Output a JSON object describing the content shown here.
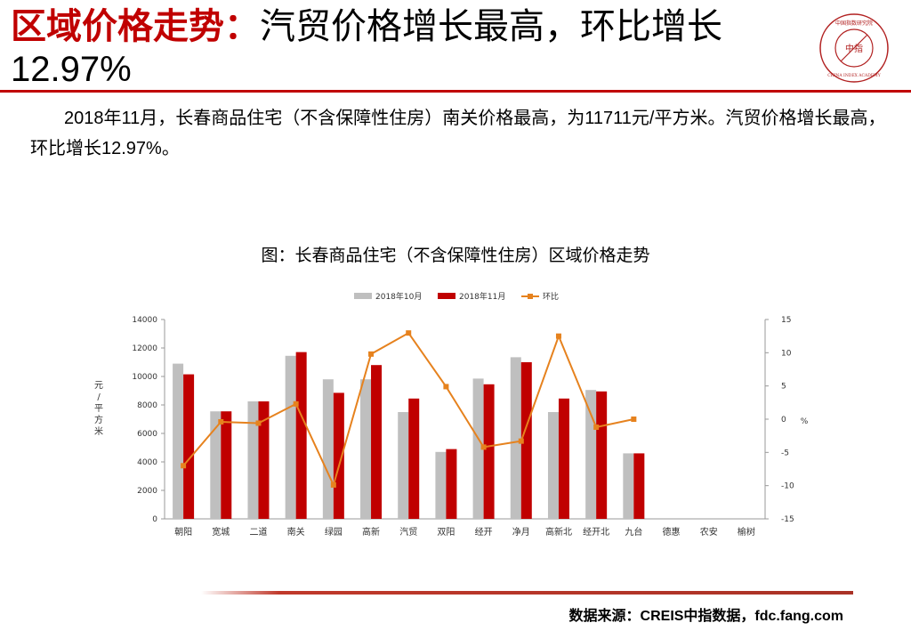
{
  "header": {
    "title_lead": "区域价格走势：",
    "title_rest": "汽贸价格增长最高，环比增长12.97%",
    "seal_center": "中指",
    "seal_top": "中国指数研究院",
    "seal_bottom": "CHINA INDEX ACADEMY"
  },
  "paragraph": "2018年11月，长春商品住宅（不含保障性住房）南关价格最高，为11711元/平方米。汽贸价格增长最高，环比增长12.97%。",
  "chart_title": "图：长春商品住宅（不含保障性住房）区域价格走势",
  "source": "数据来源：CREIS中指数据，fdc.fang.com",
  "colors": {
    "title_red": "#c00000",
    "series_oct": "#bfbfbf",
    "series_nov": "#c00000",
    "series_mom": "#e6821e"
  },
  "chart_data": {
    "type": "bar",
    "categories": [
      "朝阳",
      "宽城",
      "二道",
      "南关",
      "绿园",
      "高新",
      "汽贸",
      "双阳",
      "经开",
      "净月",
      "高新北",
      "经开北",
      "九台",
      "德惠",
      "农安",
      "榆树"
    ],
    "series": [
      {
        "name": "2018年10月",
        "type": "bar",
        "axis": "left",
        "values": [
          10900,
          7550,
          8250,
          11450,
          9800,
          9800,
          7500,
          4700,
          9850,
          11350,
          7500,
          9050,
          4600,
          null,
          null,
          null
        ]
      },
      {
        "name": "2018年11月",
        "type": "bar",
        "axis": "left",
        "values": [
          10150,
          7550,
          8250,
          11711,
          8850,
          10800,
          8450,
          4900,
          9450,
          11000,
          8450,
          8950,
          4600,
          null,
          null,
          null
        ]
      },
      {
        "name": "环比",
        "type": "line",
        "axis": "right",
        "values": [
          -7.0,
          -0.4,
          -0.6,
          2.3,
          -9.9,
          9.8,
          12.97,
          4.9,
          -4.2,
          -3.3,
          12.5,
          -1.2,
          0.0,
          null,
          null,
          null
        ]
      }
    ],
    "ylabel": "元/平方米",
    "y2label": "%",
    "ylim": [
      0,
      14000
    ],
    "yticks": [
      0,
      2000,
      4000,
      6000,
      8000,
      10000,
      12000,
      14000
    ],
    "y2lim": [
      -15,
      15
    ],
    "y2ticks": [
      -15,
      -10,
      -5,
      0,
      5,
      10,
      15
    ],
    "legend": "top",
    "grid": false
  }
}
